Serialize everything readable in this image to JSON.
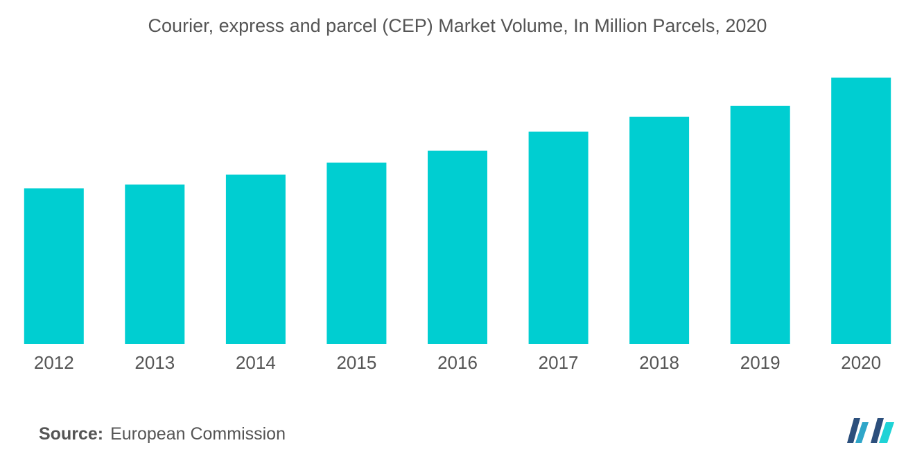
{
  "chart_data": {
    "type": "bar",
    "title": "Courier, express and parcel (CEP) Market Volume, In Million Parcels, 2020",
    "categories": [
      "2012",
      "2013",
      "2014",
      "2015",
      "2016",
      "2017",
      "2018",
      "2019",
      "2020"
    ],
    "values": [
      170,
      174,
      185,
      198,
      211,
      232,
      248,
      260,
      291
    ],
    "ylim": [
      0,
      300
    ],
    "bar_color": "#00CED1",
    "grid": false,
    "legend": "none"
  },
  "source": {
    "label": "Source:",
    "value": "European Commission"
  },
  "logo": {
    "icon": "mordor-intelligence-logo-icon",
    "colors": [
      "#2C4F7C",
      "#2FA6C9",
      "#1ED3D6"
    ]
  }
}
